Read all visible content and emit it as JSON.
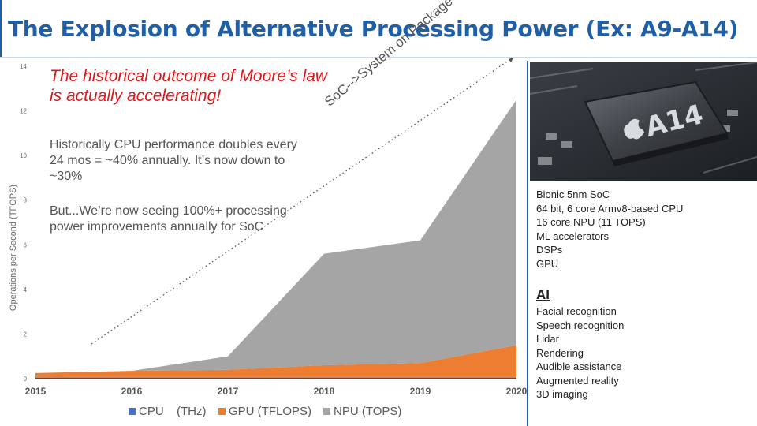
{
  "header": {
    "title": "The Explosion of Alternative Processing Power (Ex: A9-A14)"
  },
  "chart_data": {
    "type": "area",
    "stacked": true,
    "x": [
      "2015",
      "2016",
      "2017",
      "2018",
      "2019",
      "2020"
    ],
    "series": [
      {
        "name": "CPU",
        "unit_label": "(THz)",
        "color": "#4472c4",
        "values": [
          0.05,
          0.05,
          0.05,
          0.05,
          0.05,
          0.05
        ]
      },
      {
        "name": "GPU (TFLOPS)",
        "color": "#ed7d31",
        "values": [
          0.2,
          0.3,
          0.35,
          0.55,
          0.65,
          1.45
        ]
      },
      {
        "name": "NPU (TOPS)",
        "color": "#a5a5a5",
        "values": [
          0,
          0,
          0.6,
          5.0,
          5.5,
          11.0
        ]
      }
    ],
    "ylabel": "Operations per Second (TFOPS)",
    "xlabel": "",
    "ylim": [
      0,
      14
    ],
    "yticks": [
      "0",
      "2",
      "4",
      "6",
      "8",
      "10",
      "12",
      "14"
    ],
    "grid": false,
    "legend": "bottom",
    "annotations": {
      "red": "The historical outcome of Moore’s law is actually accelerating!",
      "gray1": "Historically CPU performance doubles every 24 mos = ~40% annually. It’s now down to ~30%",
      "gray2": "But...We’re now seeing 100%+ processing power improvements annually for SoC",
      "trend": "SoC-->System on Package"
    }
  },
  "side_panel": {
    "chip_label": "A14",
    "specs": [
      "Bionic 5nm SoC",
      "64 bit, 6 core Armv8-based CPU",
      "16 core NPU (11 TOPS)",
      "ML accelerators",
      "DSPs",
      "GPU"
    ],
    "ai_heading": "AI",
    "ai_items": [
      "Facial recognition",
      "Speech recognition",
      "Lidar",
      "Rendering",
      "Audible assistance",
      "Augmented reality",
      "3D imaging"
    ]
  }
}
